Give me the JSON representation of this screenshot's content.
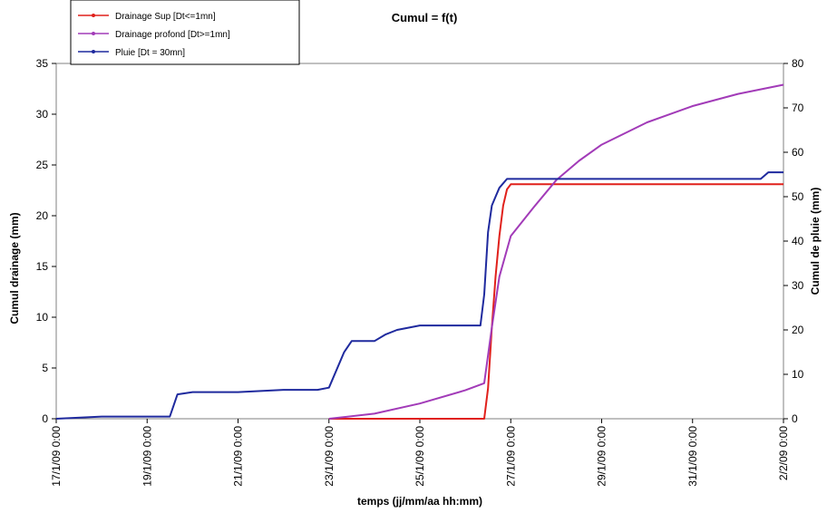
{
  "chart_data": {
    "type": "line",
    "title": "Cumul  = f(t)",
    "xlabel": "temps (jj/mm/aa hh:mm)",
    "ylabel": "Cumul drainage (mm)",
    "y2label": "Cumul de pluie (mm)",
    "xlim": [
      "17/1/09 0:00",
      "2/2/09 0:00"
    ],
    "ylim": [
      0,
      35
    ],
    "y2lim": [
      0,
      80
    ],
    "x_tick_labels": [
      "17/1/09 0:00",
      "19/1/09 0:00",
      "21/1/09 0:00",
      "23/1/09 0:00",
      "25/1/09 0:00",
      "27/1/09 0:00",
      "29/1/09 0:00",
      "31/1/09 0:00",
      "2/2/09 0:00"
    ],
    "y_ticks": [
      0,
      5,
      10,
      15,
      20,
      25,
      30,
      35
    ],
    "y2_ticks": [
      0,
      10,
      20,
      30,
      40,
      50,
      60,
      70,
      80
    ],
    "grid": false,
    "legend_position": "top-left",
    "series": [
      {
        "name": "Drainage Sup [Dt<=1mn]",
        "color": "#e0201b",
        "axis": "left",
        "x": [
          "23/1/09 0:00",
          "26/1/09 10:00",
          "26/1/09 12:00",
          "26/1/09 14:00",
          "26/1/09 16:00",
          "26/1/09 18:00",
          "26/1/09 20:00",
          "26/1/09 22:00",
          "27/1/09 0:00",
          "2/2/09 0:00"
        ],
        "y": [
          0,
          0,
          3,
          9,
          14,
          18,
          21,
          22.6,
          23.1,
          23.1
        ]
      },
      {
        "name": "Drainage profond [Dt>=1mn]",
        "color": "#a23bb8",
        "axis": "left",
        "x": [
          "23/1/09 0:00",
          "24/1/09 0:00",
          "25/1/09 0:00",
          "26/1/09 0:00",
          "26/1/09 10:00",
          "26/1/09 14:00",
          "26/1/09 18:00",
          "27/1/09 0:00",
          "27/1/09 12:00",
          "28/1/09 0:00",
          "28/1/09 12:00",
          "29/1/09 0:00",
          "30/1/09 0:00",
          "31/1/09 0:00",
          "1/2/09 0:00",
          "2/2/09 0:00"
        ],
        "y": [
          0,
          0.5,
          1.5,
          2.8,
          3.5,
          9,
          14,
          18,
          20.8,
          23.5,
          25.4,
          27,
          29.2,
          30.8,
          32,
          32.9
        ]
      },
      {
        "name": "Pluie [Dt = 30mn]",
        "color": "#1f2a9e",
        "axis": "right",
        "x": [
          "17/1/09 0:00",
          "18/1/09 0:00",
          "19/1/09 12:00",
          "19/1/09 16:00",
          "20/1/09 0:00",
          "21/1/09 0:00",
          "22/1/09 0:00",
          "22/1/09 18:00",
          "23/1/09 0:00",
          "23/1/09 8:00",
          "23/1/09 12:00",
          "24/1/09 0:00",
          "24/1/09 6:00",
          "24/1/09 12:00",
          "25/1/09 0:00",
          "26/1/09 0:00",
          "26/1/09 8:00",
          "26/1/09 10:00",
          "26/1/09 12:00",
          "26/1/09 14:00",
          "26/1/09 16:00",
          "26/1/09 18:00",
          "26/1/09 22:00",
          "1/2/09 12:00",
          "1/2/09 16:00",
          "2/2/09 0:00"
        ],
        "y": [
          0,
          0.5,
          0.5,
          5.5,
          6,
          6,
          6.5,
          6.5,
          7,
          15,
          17.5,
          17.5,
          19,
          20,
          21,
          21,
          21,
          28,
          42,
          48,
          50,
          52,
          54,
          54,
          55.5,
          55.5
        ]
      }
    ]
  }
}
